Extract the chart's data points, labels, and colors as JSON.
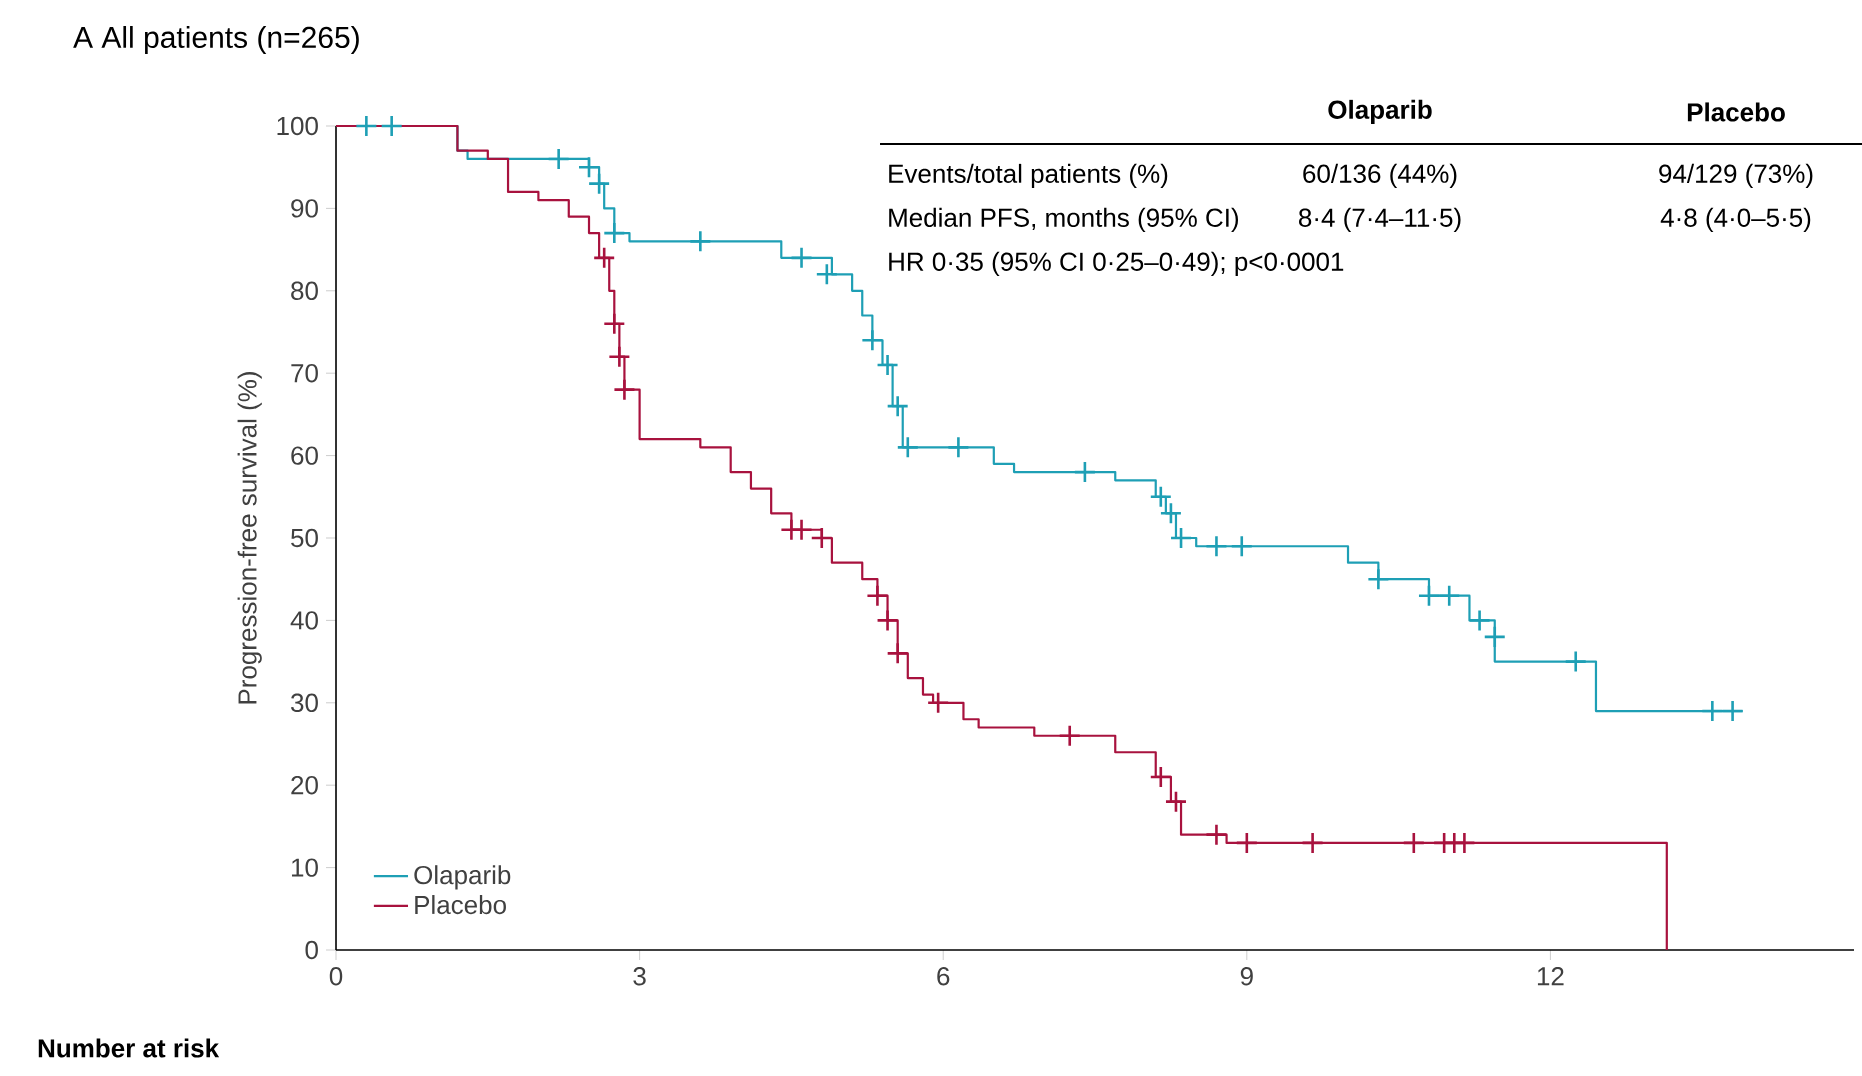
{
  "chart_data": {
    "type": "step",
    "title": "A  All patients (n=265)",
    "ylabel": "Progression-free survival (%)",
    "xlim": [
      0,
      15
    ],
    "xticks": [
      0,
      3,
      6,
      9,
      12
    ],
    "ylim": [
      0,
      100
    ],
    "yticks": [
      0,
      10,
      20,
      30,
      40,
      50,
      60,
      70,
      80,
      90,
      100
    ],
    "grid": false,
    "legend": "bottom left",
    "line_style": "solid",
    "annotations": [
      "Olaparib",
      "Placebo",
      "Events/total patients (%)",
      "60/136 (44%)",
      "94/129 (73%)",
      "Median PFS, months (95% CI)",
      "8·4 (7·4–11·5)",
      "4·8 (4·0–5·5)",
      "HR 0·35 (95% CI 0·25–0·49); p<0·0001",
      "Number at risk"
    ],
    "series": [
      {
        "name": "Olaparib",
        "color": "#1e9fb5",
        "x": [
          0,
          1.2,
          1.3,
          2.5,
          2.6,
          2.65,
          2.75,
          2.9,
          4.4,
          4.9,
          5.1,
          5.2,
          5.3,
          5.4,
          5.5,
          5.6,
          6.5,
          6.7,
          7.7,
          8.1,
          8.2,
          8.3,
          8.5,
          10.0,
          10.3,
          10.8,
          11.2,
          11.45,
          12.45,
          13.9
        ],
        "values": [
          100,
          97,
          96,
          95,
          93,
          90,
          87,
          86,
          84,
          82,
          80,
          77,
          74,
          71,
          66,
          61,
          59,
          58,
          57,
          55,
          53,
          50,
          49,
          47,
          45,
          43,
          40,
          35,
          29,
          29
        ]
      },
      {
        "name": "Placebo",
        "color": "#a8123e",
        "x": [
          0,
          1.2,
          1.5,
          1.7,
          2.0,
          2.3,
          2.5,
          2.6,
          2.7,
          2.75,
          2.8,
          2.85,
          3.0,
          3.6,
          3.9,
          4.1,
          4.3,
          4.5,
          4.8,
          4.9,
          5.2,
          5.35,
          5.45,
          5.55,
          5.65,
          5.8,
          5.9,
          6.2,
          6.35,
          6.9,
          7.7,
          8.1,
          8.25,
          8.35,
          8.8,
          13.15
        ],
        "values": [
          100,
          97,
          96,
          92,
          91,
          89,
          87,
          84,
          80,
          76,
          72,
          68,
          62,
          61,
          58,
          56,
          53,
          51,
          50,
          47,
          45,
          43,
          40,
          36,
          33,
          31,
          30,
          28,
          27,
          26,
          24,
          21,
          18,
          14,
          13,
          0
        ]
      },
      {
        "type": "scatter",
        "marker": "cross",
        "color": "#1e9fb5",
        "x": [
          0.3,
          0.55,
          2.2,
          2.5,
          2.6,
          2.75,
          3.6,
          4.6,
          4.85,
          5.3,
          5.45,
          5.55,
          5.65,
          6.15,
          7.4,
          8.15,
          8.25,
          8.35,
          8.7,
          8.95,
          10.3,
          10.8,
          11.0,
          11.3,
          11.45,
          12.25,
          13.6,
          13.8
        ],
        "values": [
          100,
          100,
          96,
          95,
          93,
          87,
          86,
          84,
          82,
          74,
          71,
          66,
          61,
          61,
          58,
          55,
          53,
          50,
          49,
          49,
          45,
          43,
          43,
          40,
          38,
          35,
          29,
          29
        ]
      },
      {
        "type": "scatter",
        "marker": "cross",
        "color": "#a8123e",
        "x": [
          2.65,
          2.75,
          2.8,
          2.85,
          4.5,
          4.6,
          4.8,
          5.35,
          5.45,
          5.55,
          5.95,
          7.25,
          8.15,
          8.3,
          8.7,
          9.0,
          9.65,
          10.65,
          10.95,
          11.05,
          11.15
        ],
        "values": [
          84,
          76,
          72,
          68,
          51,
          51,
          50,
          43,
          40,
          36,
          30,
          26,
          21,
          18,
          14,
          13,
          13,
          13,
          13,
          13,
          13
        ]
      }
    ]
  }
}
